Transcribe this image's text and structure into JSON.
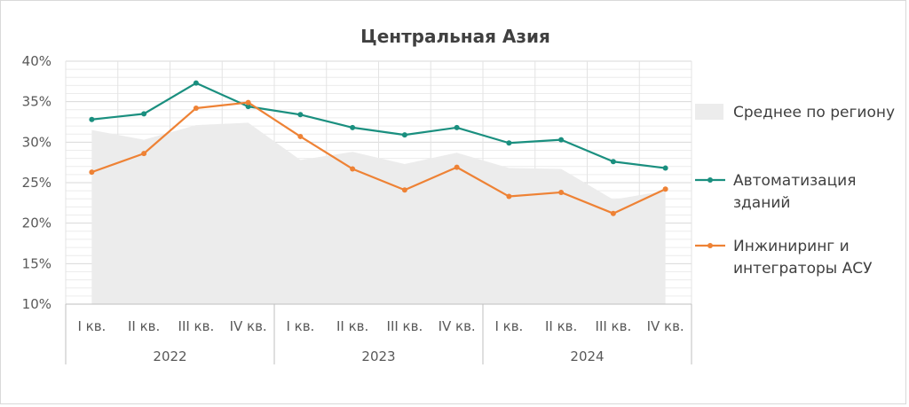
{
  "chart_data": {
    "type": "line",
    "title": "Центральная Азия",
    "xlabel": "",
    "ylabel": "",
    "ylim": [
      10,
      40
    ],
    "y_ticks": [
      "10%",
      "15%",
      "20%",
      "25%",
      "30%",
      "35%",
      "40%"
    ],
    "y_tick_values": [
      10,
      15,
      20,
      25,
      30,
      35,
      40
    ],
    "grid": true,
    "legend_position": "right",
    "categories": [
      "I кв.",
      "II кв.",
      "III кв.",
      "IV кв.",
      "I кв.",
      "II кв.",
      "III кв.",
      "IV кв.",
      "I кв.",
      "II кв.",
      "III кв.",
      "IV кв."
    ],
    "groups": [
      {
        "label": "2022",
        "count": 4
      },
      {
        "label": "2023",
        "count": 4
      },
      {
        "label": "2024",
        "count": 4
      }
    ],
    "series": [
      {
        "name": "Среднее по региону",
        "kind": "area",
        "color": "#ececec",
        "values": [
          31.5,
          30.3,
          32.1,
          32.4,
          27.8,
          28.8,
          27.3,
          28.7,
          26.8,
          26.7,
          22.9,
          24.0
        ]
      },
      {
        "name": "Автоматизация зданий",
        "kind": "line",
        "color": "#1a8f7f",
        "values": [
          32.8,
          33.5,
          37.3,
          34.4,
          33.4,
          31.8,
          30.9,
          31.8,
          29.9,
          30.3,
          27.6,
          26.8
        ]
      },
      {
        "name": "Инжиниринг и интеграторы АСУ",
        "kind": "line",
        "color": "#ee8235",
        "values": [
          26.3,
          28.6,
          34.2,
          34.9,
          30.7,
          26.7,
          24.1,
          26.9,
          23.3,
          23.8,
          21.2,
          24.2
        ]
      }
    ]
  },
  "legend": {
    "items": [
      {
        "lines": [
          "Среднее по региону"
        ]
      },
      {
        "lines": [
          "Автоматизация",
          "зданий"
        ]
      },
      {
        "lines": [
          "Инжиниринг и",
          "интеграторы АСУ"
        ]
      }
    ]
  }
}
